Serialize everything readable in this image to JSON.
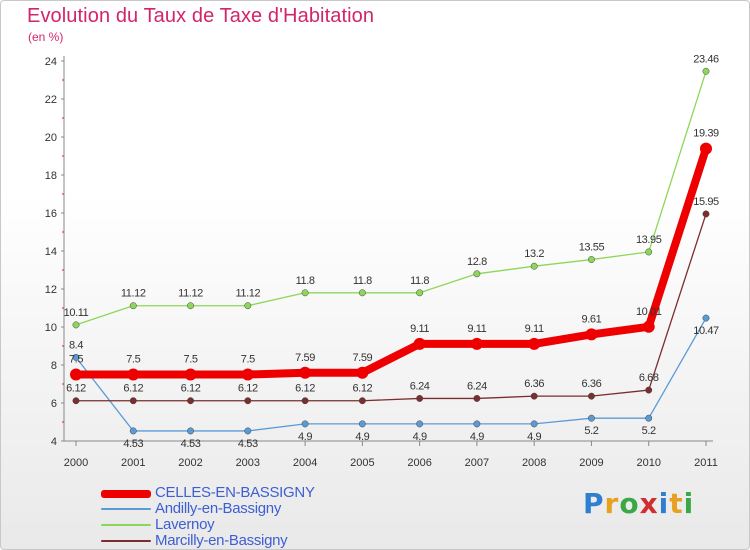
{
  "chart_data": {
    "type": "line",
    "title": "Evolution du Taux de Taxe d'Habitation",
    "ylabel": "(en %)",
    "x": [
      "2000",
      "2001",
      "2002",
      "2003",
      "2004",
      "2005",
      "2006",
      "2007",
      "2008",
      "2009",
      "2010",
      "2011"
    ],
    "ylim": [
      4,
      24
    ],
    "yticks": [
      "4",
      "6",
      "8",
      "10",
      "12",
      "14",
      "16",
      "18",
      "20",
      "22",
      "24"
    ],
    "series": [
      {
        "name": "CELLES-EN-BASSIGNY",
        "color": "#ee0000",
        "values": [
          7.5,
          7.5,
          7.5,
          7.5,
          7.59,
          7.59,
          9.11,
          9.11,
          9.11,
          9.61,
          10.01,
          19.39
        ],
        "labels": [
          "7.5",
          "7.5",
          "7.5",
          "7.5",
          "7.59",
          "7.59",
          "9.11",
          "9.11",
          "9.11",
          "9.61",
          "10.01",
          "19.39"
        ]
      },
      {
        "name": "Andilly-en-Bassigny",
        "color": "#5b9bd5",
        "values": [
          8.4,
          4.53,
          4.53,
          4.53,
          4.9,
          4.9,
          4.9,
          4.9,
          4.9,
          5.2,
          5.2,
          10.47
        ],
        "labels": [
          "8.4",
          "4.53",
          "4.53",
          "4.53",
          "4.9",
          "4.9",
          "4.9",
          "4.9",
          "4.9",
          "5.2",
          "5.2",
          "10.47"
        ]
      },
      {
        "name": "Lavernoy",
        "color": "#8ed65a",
        "values": [
          10.11,
          11.12,
          11.12,
          11.12,
          11.8,
          11.8,
          11.8,
          12.8,
          13.2,
          13.55,
          13.95,
          23.46
        ],
        "labels": [
          "10.11",
          "11.12",
          "11.12",
          "11.12",
          "11.8",
          "11.8",
          "11.8",
          "12.8",
          "13.2",
          "13.55",
          "13.95",
          "23.46"
        ]
      },
      {
        "name": "Marcilly-en-Bassigny",
        "color": "#7a2e2e",
        "values": [
          6.12,
          6.12,
          6.12,
          6.12,
          6.12,
          6.12,
          6.24,
          6.24,
          6.36,
          6.36,
          6.68,
          15.95
        ],
        "labels": [
          "6.12",
          "6.12",
          "6.12",
          "6.12",
          "6.12",
          "6.12",
          "6.24",
          "6.24",
          "6.36",
          "6.36",
          "6.68",
          "15.95"
        ]
      }
    ],
    "grid": false,
    "legend": "bottom-left"
  },
  "logo": {
    "text": "Proxiti"
  }
}
